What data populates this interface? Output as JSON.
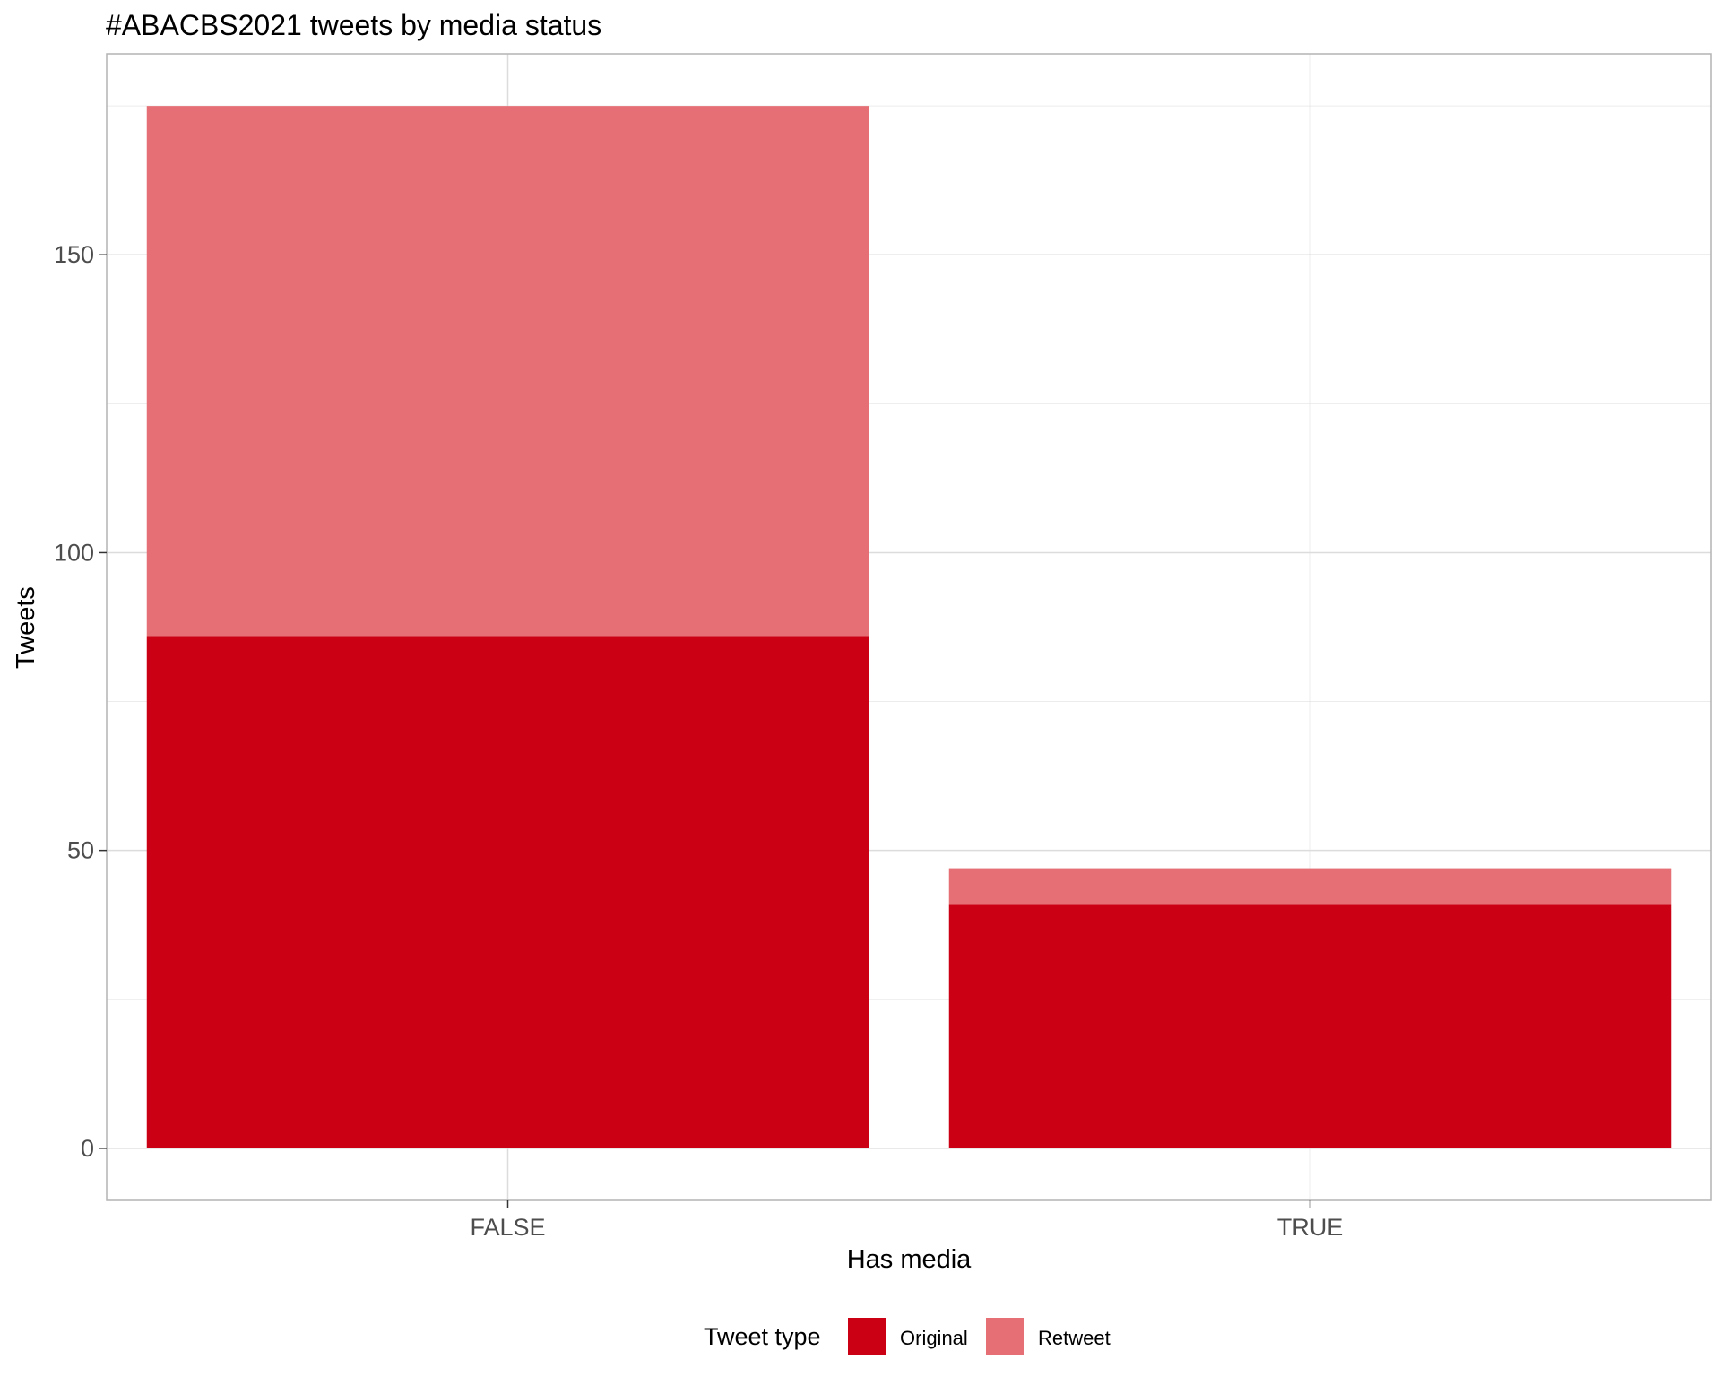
{
  "chart_data": {
    "type": "bar",
    "stacked": true,
    "title": "#ABACBS2021 tweets by media status",
    "xlabel": "Has media",
    "ylabel": "Tweets",
    "categories": [
      "FALSE",
      "TRUE"
    ],
    "series": [
      {
        "name": "Original",
        "values": [
          86,
          41
        ],
        "color": "#cc0015"
      },
      {
        "name": "Retweet",
        "values": [
          89,
          6
        ],
        "color": "#e56f75"
      }
    ],
    "y_ticks": [
      0,
      50,
      100,
      150
    ],
    "ylim": [
      -8.75,
      183.75
    ],
    "grid": true,
    "legend": {
      "title": "Tweet type",
      "position": "bottom"
    }
  }
}
